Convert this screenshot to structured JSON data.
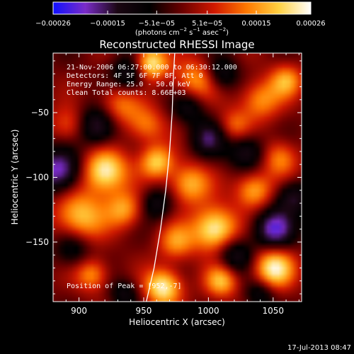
{
  "chart_data": {
    "type": "heatmap",
    "title": "Reconstructed RHESSI Image",
    "xlabel": "Heliocentric X (arcsec)",
    "ylabel": "Heliocentric Y (arcsec)",
    "xlim": [
      880,
      1072
    ],
    "ylim": [
      -196,
      -4
    ],
    "x_ticks": [
      900,
      950,
      1000,
      1050
    ],
    "x_tick_labels": [
      "900",
      "950",
      "1000",
      "1050"
    ],
    "y_ticks": [
      -50,
      -100,
      -150
    ],
    "y_tick_labels": [
      "−50",
      "−100",
      "−150"
    ],
    "colorbar": {
      "min": -0.00026,
      "max": 0.00026,
      "ticks": [
        -0.00026,
        -0.00015,
        -5.1e-05,
        5.1e-05,
        0.00015,
        0.00026
      ],
      "tick_labels": [
        "−0.00026",
        "−0.00015",
        "−5.1e−05",
        "5.1e−05",
        "0.00015",
        "0.00026"
      ],
      "unit_label_main": "(photons cm",
      "unit_label_exp1": "−2",
      "unit_label_mid1": " s",
      "unit_label_exp2": "−1",
      "unit_label_mid2": " asec",
      "unit_label_exp3": "−2",
      "unit_label_end": ")",
      "colors": [
        "#1010ff",
        "#7a2cc8",
        "#1a0612",
        "#000000",
        "#6a0000",
        "#d01800",
        "#ff7800",
        "#ffd040",
        "#ffffff"
      ]
    },
    "info_lines": [
      "21-Nov-2006 06:27:00.000 to 06:30:12.000",
      "Detectors: 4F 5F 6F 7F 8F, Att 0",
      "Energy Range: 25.0 - 50.0 keV",
      "Clean    Total counts: 8.66E+03"
    ],
    "peak_label": "Position of Peak = [952,-7]",
    "limb_curve": [
      [
        952,
        -196
      ],
      [
        958,
        -170
      ],
      [
        963,
        -140
      ],
      [
        967,
        -110
      ],
      [
        970,
        -80
      ],
      [
        972,
        -50
      ],
      [
        973,
        -20
      ],
      [
        974,
        -4
      ]
    ],
    "grid": false,
    "timestamp": "17-Jul-2013 08:47",
    "blobs": [
      {
        "x": 955,
        "y": -12,
        "v": 1.0,
        "s": 9
      },
      {
        "x": 930,
        "y": -45,
        "v": 0.55,
        "s": 12
      },
      {
        "x": 892,
        "y": -60,
        "v": 0.45,
        "s": 10
      },
      {
        "x": 920,
        "y": -95,
        "v": 1.0,
        "s": 12
      },
      {
        "x": 900,
        "y": -130,
        "v": 0.75,
        "s": 14
      },
      {
        "x": 935,
        "y": -125,
        "v": 0.6,
        "s": 10
      },
      {
        "x": 952,
        "y": -60,
        "v": 0.5,
        "s": 10
      },
      {
        "x": 960,
        "y": -88,
        "v": 0.75,
        "s": 9
      },
      {
        "x": 990,
        "y": -25,
        "v": 0.6,
        "s": 12
      },
      {
        "x": 985,
        "y": -105,
        "v": 0.7,
        "s": 11
      },
      {
        "x": 1005,
        "y": -140,
        "v": 1.0,
        "s": 12
      },
      {
        "x": 975,
        "y": -150,
        "v": 0.55,
        "s": 10
      },
      {
        "x": 1040,
        "y": -40,
        "v": 0.6,
        "s": 11
      },
      {
        "x": 1060,
        "y": -25,
        "v": 0.6,
        "s": 9
      },
      {
        "x": 1055,
        "y": -85,
        "v": 0.55,
        "s": 10
      },
      {
        "x": 1035,
        "y": -110,
        "v": 0.7,
        "s": 10
      },
      {
        "x": 1050,
        "y": -170,
        "v": 0.95,
        "s": 11
      },
      {
        "x": 1010,
        "y": -180,
        "v": 0.7,
        "s": 9
      },
      {
        "x": 965,
        "y": -185,
        "v": 0.95,
        "s": 10
      },
      {
        "x": 910,
        "y": -175,
        "v": 0.6,
        "s": 9
      },
      {
        "x": 1020,
        "y": -60,
        "v": 0.45,
        "s": 9
      },
      {
        "x": 1000,
        "y": -70,
        "v": -0.55,
        "s": 10
      },
      {
        "x": 915,
        "y": -60,
        "v": -0.75,
        "s": 11
      },
      {
        "x": 885,
        "y": -95,
        "v": -0.85,
        "s": 12
      },
      {
        "x": 940,
        "y": -20,
        "v": -0.6,
        "s": 10
      },
      {
        "x": 985,
        "y": -45,
        "v": -0.45,
        "s": 9
      },
      {
        "x": 1010,
        "y": -20,
        "v": -0.5,
        "s": 9
      },
      {
        "x": 1050,
        "y": -140,
        "v": -0.8,
        "s": 11
      },
      {
        "x": 1065,
        "y": -115,
        "v": -0.55,
        "s": 9
      },
      {
        "x": 1030,
        "y": -80,
        "v": -0.55,
        "s": 10
      },
      {
        "x": 895,
        "y": -155,
        "v": -0.45,
        "s": 10
      },
      {
        "x": 1020,
        "y": -160,
        "v": -0.55,
        "s": 10
      },
      {
        "x": 960,
        "y": -120,
        "v": -0.45,
        "s": 9
      },
      {
        "x": 1040,
        "y": -190,
        "v": -0.45,
        "s": 8
      },
      {
        "x": 935,
        "y": -190,
        "v": -0.4,
        "s": 8
      }
    ]
  }
}
